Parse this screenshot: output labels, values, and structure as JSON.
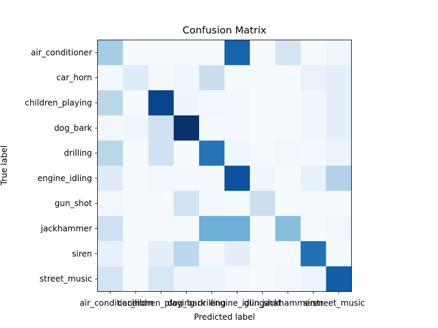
{
  "chart_data": {
    "type": "heatmap",
    "title": "Confusion Matrix",
    "xlabel": "Predicted label",
    "ylabel": "True label",
    "colormap": "Blues",
    "x_categories": [
      "air_conditioner",
      "car_horn",
      "children_playing",
      "dog_bark",
      "drilling",
      "engine_idling",
      "gun_shot",
      "jackhammer",
      "siren",
      "street_music"
    ],
    "y_categories": [
      "air_conditioner",
      "car_horn",
      "children_playing",
      "dog_bark",
      "drilling",
      "engine_idling",
      "gun_shot",
      "jackhammer",
      "siren",
      "street_music"
    ],
    "values": [
      [
        0.35,
        0.01,
        0.01,
        0.01,
        0.01,
        0.8,
        0.01,
        0.18,
        0.01,
        0.04
      ],
      [
        0.02,
        0.12,
        0.02,
        0.04,
        0.23,
        0.01,
        0.01,
        0.01,
        0.07,
        0.09
      ],
      [
        0.28,
        0.01,
        0.92,
        0.05,
        0.03,
        0.02,
        0.01,
        0.01,
        0.04,
        0.09
      ],
      [
        0.03,
        0.04,
        0.2,
        1.0,
        0.02,
        0.02,
        0.01,
        0.01,
        0.04,
        0.09
      ],
      [
        0.29,
        0.01,
        0.2,
        0.0,
        0.74,
        0.04,
        0.01,
        0.03,
        0.02,
        0.05
      ],
      [
        0.12,
        0.01,
        0.02,
        0.02,
        0.02,
        0.87,
        0.04,
        0.01,
        0.08,
        0.32
      ],
      [
        0.03,
        0.01,
        0.01,
        0.19,
        0.02,
        0.01,
        0.22,
        0.01,
        0.01,
        0.01
      ],
      [
        0.21,
        0.01,
        0.01,
        0.01,
        0.5,
        0.5,
        0.01,
        0.43,
        0.01,
        0.03
      ],
      [
        0.08,
        0.01,
        0.09,
        0.28,
        0.02,
        0.09,
        0.01,
        0.01,
        0.75,
        0.02
      ],
      [
        0.18,
        0.01,
        0.16,
        0.05,
        0.06,
        0.02,
        0.01,
        0.02,
        0.05,
        0.82
      ]
    ],
    "vmin": 0,
    "vmax": 1,
    "grid": false,
    "legend": "none"
  }
}
